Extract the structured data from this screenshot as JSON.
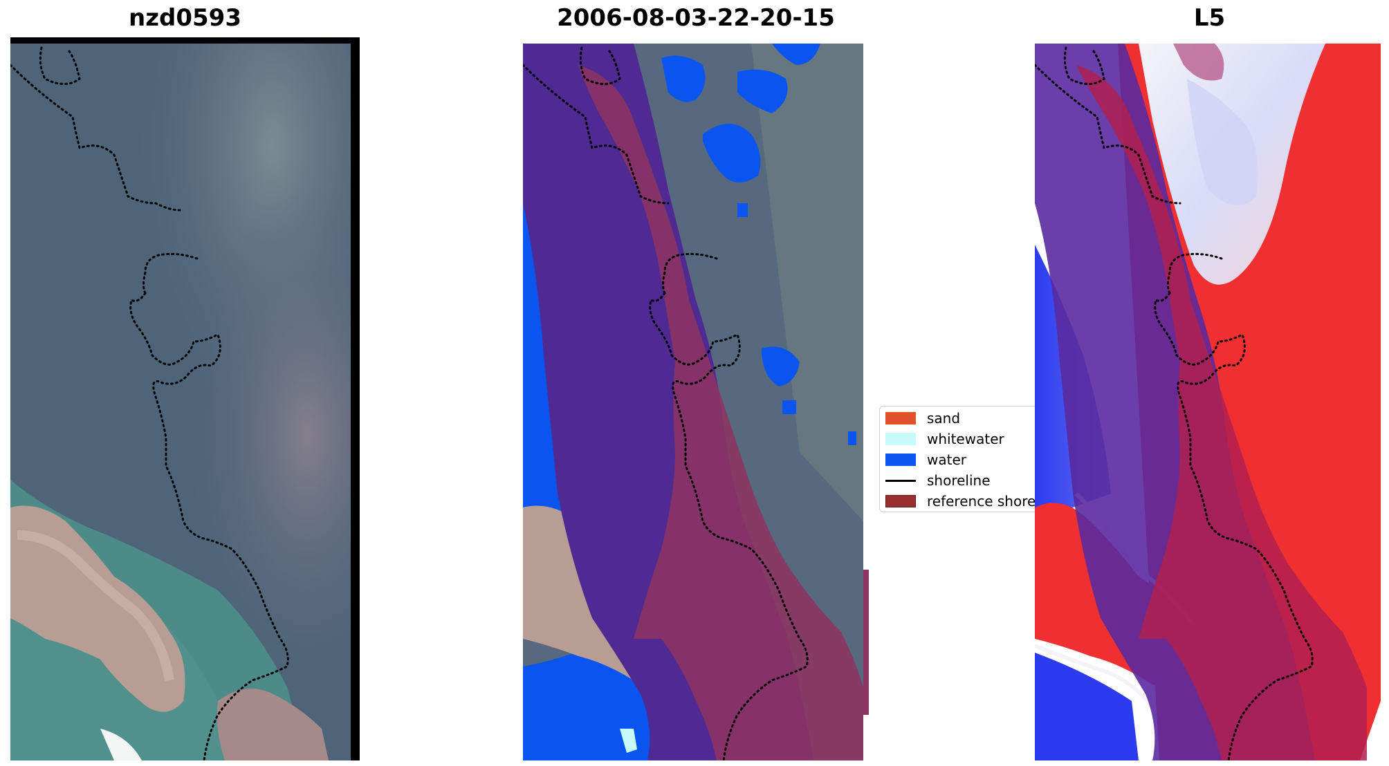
{
  "panels": [
    {
      "title": "nzd0593"
    },
    {
      "title": "2006-08-03-22-20-15"
    },
    {
      "title": "L5"
    }
  ],
  "legend": {
    "placement": "right of middle panel",
    "items": [
      {
        "label": "sand",
        "color": "#e0522a",
        "kind": "patch"
      },
      {
        "label": "whitewater",
        "color": "#c8fbfb",
        "kind": "patch"
      },
      {
        "label": "water",
        "color": "#0a55f0",
        "kind": "patch"
      },
      {
        "label": "shoreline",
        "color": "#000000",
        "kind": "line"
      },
      {
        "label": "reference shoreline buffer",
        "color": "#9b2f30",
        "kind": "patch"
      }
    ]
  },
  "colors": {
    "land": "#4a6078",
    "land_light": "#5d7287",
    "sea": "#4b8a8a",
    "sand_bank": "#b89e94",
    "buffer_purple": "#4f2a92",
    "buffer_red": "#8e3460",
    "water_blue": "#0a55f0",
    "index_red": "#f03030",
    "index_white": "#f4f4f8",
    "index_blue": "#2b3bf0",
    "frame": "#000000"
  }
}
